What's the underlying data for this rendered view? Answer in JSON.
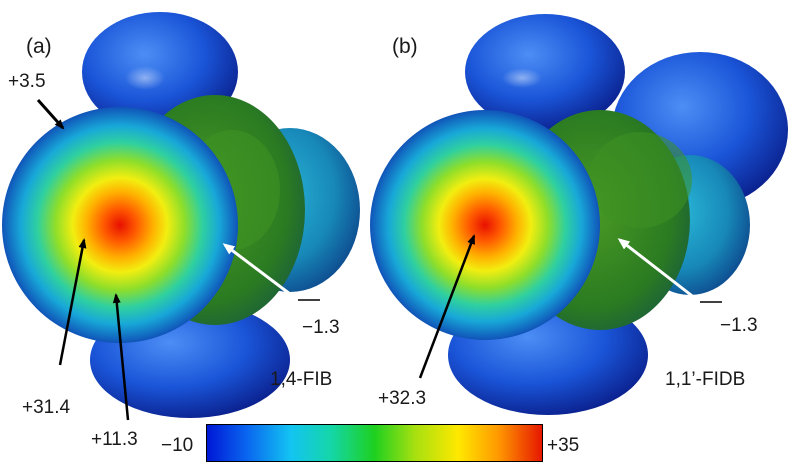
{
  "panel_a": {
    "tag": "(a)",
    "molecule": "1,4-FIB",
    "labels": {
      "sigma_hole_max": "+31.4",
      "ring_mid": "+11.3",
      "rim": "+3.5",
      "belt": "−1.3"
    }
  },
  "panel_b": {
    "tag": "(b)",
    "molecule": "1,1’-FIDB",
    "labels": {
      "sigma_hole_max": "+32.3",
      "belt": "−1.3"
    }
  },
  "colorbar": {
    "min_label": "−10",
    "max_label": "+35",
    "colors": [
      "#0018d6",
      "#0a66f0",
      "#13c4f2",
      "#14d6a8",
      "#1ed020",
      "#a6e010",
      "#ffe800",
      "#ff9800",
      "#e61800"
    ]
  },
  "colors": {
    "blue_lobe": "#1450d2",
    "teal_lobe": "#1a9cc8",
    "green_belt": "#2f8a1e",
    "sigma_red": "#e81400"
  }
}
